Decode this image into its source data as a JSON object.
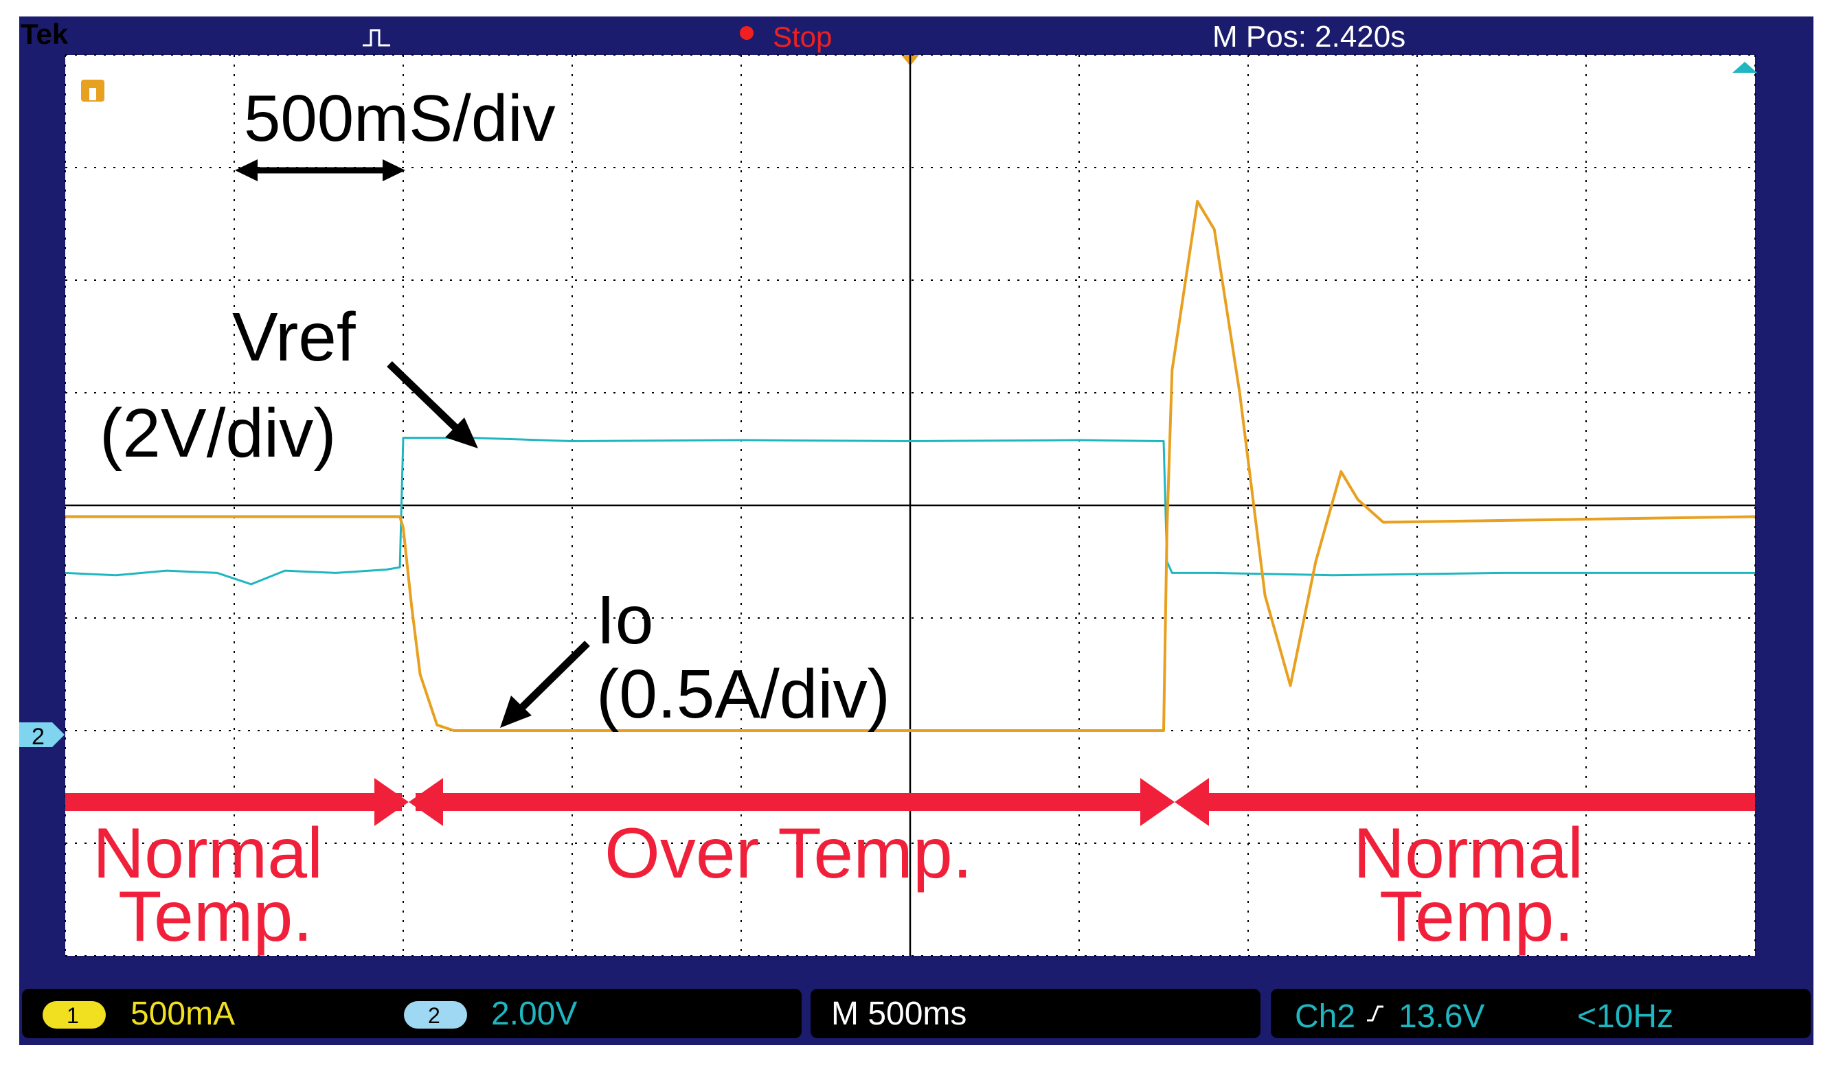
{
  "header": {
    "brand": "Tek",
    "acq_state": "Stop",
    "m_pos": "M Pos: 2.420s"
  },
  "markers": {
    "ch2_ground": "2"
  },
  "annotations": {
    "timebase": "500mS/div",
    "vref_name": "Vref",
    "vref_scale": "(2V/div)",
    "io_name": "Io",
    "io_scale": "(0.5A/div)",
    "region1_line1": "Normal",
    "region1_line2": "Temp.",
    "region2": "Over Temp.",
    "region3_line1": "Normal",
    "region3_line2": "Temp."
  },
  "footer": {
    "ch1_num": "1",
    "ch1_scale": "500mA",
    "ch2_num": "2",
    "ch2_scale": "2.00V",
    "timebase": "M 500ms",
    "trigger_source": "Ch2",
    "trigger_level": "13.6V",
    "trigger_freq": "<10Hz"
  },
  "colors": {
    "frame": "#1c1c6e",
    "ch1": "#e8a020",
    "ch2": "#1fb6c0",
    "annotation_red": "#f0203a",
    "stop_red": "#f02020"
  },
  "chart_data": {
    "type": "line",
    "xlabel": "",
    "ylabel": "",
    "xlim": [
      0,
      10
    ],
    "ylim": [
      -4,
      4
    ],
    "x_unit": "div",
    "y_unit": "div",
    "series": [
      {
        "name": "Vref",
        "x": [
          0,
          0.3,
          0.6,
          0.9,
          1.1,
          1.3,
          1.6,
          1.9,
          1.98,
          2.0,
          2.4,
          3.0,
          4.0,
          5.0,
          6.0,
          6.5,
          6.52,
          6.55,
          6.8,
          7.5,
          8.5,
          10
        ],
        "y": [
          -0.6,
          -0.62,
          -0.58,
          -0.6,
          -0.7,
          -0.58,
          -0.6,
          -0.57,
          -0.55,
          0.6,
          0.6,
          0.57,
          0.58,
          0.57,
          0.58,
          0.57,
          -0.5,
          -0.6,
          -0.6,
          -0.62,
          -0.6,
          -0.6
        ]
      },
      {
        "name": "Io",
        "x": [
          0,
          0.5,
          1.0,
          1.5,
          1.98,
          2.0,
          2.05,
          2.1,
          2.2,
          2.3,
          2.6,
          3.5,
          4.5,
          5.5,
          6.5,
          6.52,
          6.55,
          6.7,
          6.8,
          6.95,
          7.1,
          7.25,
          7.4,
          7.55,
          7.65,
          7.8,
          10
        ],
        "y": [
          -0.1,
          -0.1,
          -0.1,
          -0.1,
          -0.1,
          -0.2,
          -0.9,
          -1.5,
          -1.95,
          -2.0,
          -2.0,
          -2.0,
          -2.0,
          -2.0,
          -2.0,
          -0.2,
          1.2,
          2.7,
          2.45,
          1.0,
          -0.8,
          -1.6,
          -0.5,
          0.3,
          0.05,
          -0.15,
          -0.1
        ]
      }
    ]
  }
}
